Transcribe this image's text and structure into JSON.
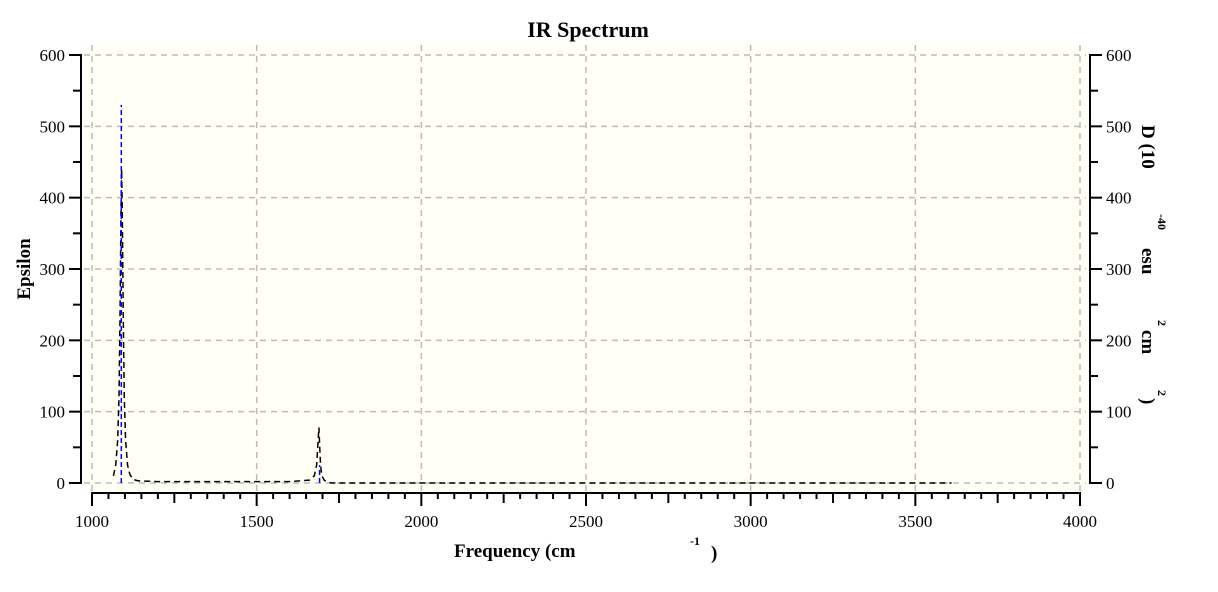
{
  "chart_data": {
    "type": "line",
    "title": "IR Spectrum",
    "xlabel": "Frequency (cm",
    "xlabel_sup": "-1",
    "xlabel_close": ")",
    "ylabel": "Epsilon",
    "y2label_parts": [
      "D (10",
      "-40",
      "esu",
      "2",
      "cm",
      "2",
      ")"
    ],
    "xlim": [
      1000,
      4000
    ],
    "ylim": [
      0,
      600
    ],
    "y2lim": [
      0,
      600
    ],
    "xticks": [
      1000,
      1500,
      2000,
      2500,
      3000,
      3500,
      4000
    ],
    "yticks": [
      0,
      100,
      200,
      300,
      400,
      500,
      600
    ],
    "grid": true,
    "background_color": "#fffff5",
    "series": [
      {
        "style": "dashed",
        "color": "#000000",
        "x": [
          1065,
          1072,
          1078,
          1082,
          1085,
          1088,
          1090,
          1092,
          1095,
          1098,
          1102,
          1108,
          1115,
          1125,
          1140,
          1200,
          1400,
          1600,
          1660,
          1675,
          1682,
          1686,
          1689,
          1691,
          1694,
          1698,
          1705,
          1715,
          1730,
          2000,
          2500,
          3000,
          3500,
          3610
        ],
        "y": [
          10,
          25,
          60,
          120,
          230,
          380,
          440,
          380,
          230,
          120,
          60,
          25,
          12,
          5,
          3,
          2,
          2,
          2,
          4,
          10,
          25,
          55,
          78,
          55,
          25,
          10,
          4,
          1,
          0,
          0,
          0,
          0,
          0,
          0
        ]
      },
      {
        "style": "stick",
        "color": "#0000ff",
        "x": [
          1089,
          1691
        ],
        "y": [
          530,
          25
        ]
      }
    ]
  }
}
